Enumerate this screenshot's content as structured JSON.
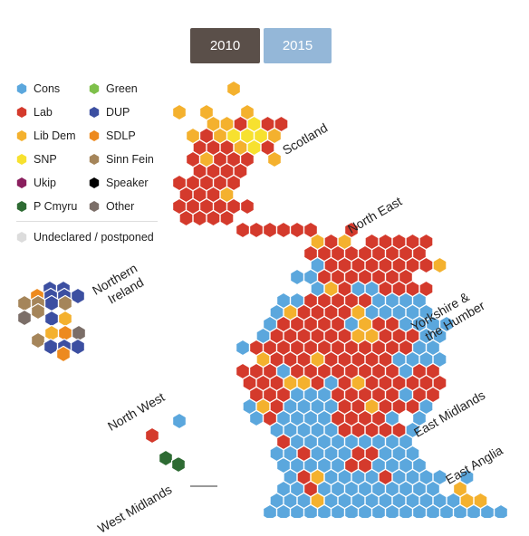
{
  "year_toggle": {
    "options": [
      "2010",
      "2015"
    ],
    "selected": "2010"
  },
  "colors": {
    "cons": "#5ba7dd",
    "lab": "#d43a2c",
    "libdem": "#f4b12e",
    "snp": "#f7e12f",
    "ukip": "#8a1f5e",
    "pcymru": "#2e6b33",
    "green": "#7ec04a",
    "dup": "#3c4fa1",
    "sdlp": "#ed8a1f",
    "sinnfein": "#a5855a",
    "speaker": "#000000",
    "other": "#7b6e68",
    "undeclared": "#dcdcdc"
  },
  "legend": {
    "items": [
      {
        "key": "cons",
        "label": "Cons"
      },
      {
        "key": "lab",
        "label": "Lab"
      },
      {
        "key": "libdem",
        "label": "Lib Dem"
      },
      {
        "key": "snp",
        "label": "SNP"
      },
      {
        "key": "ukip",
        "label": "Ukip"
      },
      {
        "key": "pcymru",
        "label": "P Cmyru"
      },
      {
        "key": "green",
        "label": "Green"
      },
      {
        "key": "dup",
        "label": "DUP"
      },
      {
        "key": "sdlp",
        "label": "SDLP"
      },
      {
        "key": "sinnfein",
        "label": "Sinn Fein"
      },
      {
        "key": "speaker",
        "label": "Speaker"
      },
      {
        "key": "other",
        "label": "Other"
      }
    ],
    "undeclared_label": "Undeclared / postponed"
  },
  "region_labels": {
    "scotland": "Scotland",
    "north_east": "North East",
    "northern_ireland": [
      "Northern",
      "Ireland"
    ],
    "yorkshire": [
      "Yorkshire &",
      "the Humber"
    ],
    "north_west": "North West",
    "east_midlands": "East Midlands",
    "east_anglia": "East Anglia",
    "west_midlands": "West Midlands"
  }
}
